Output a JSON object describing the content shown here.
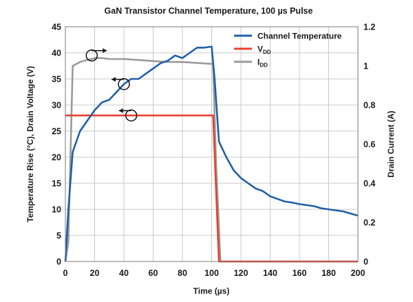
{
  "chart_data": {
    "type": "line",
    "title": "GaN Transistor Channel Temperature, 100 µs Pulse",
    "xlabel": "Time (µs)",
    "ylabel_left": "Temperature Rise (°C), Drain Voltage (V)",
    "ylabel_right": "Drain Current (A)",
    "xlim": [
      0,
      200
    ],
    "ylim_left": [
      0,
      45
    ],
    "ylim_right": [
      0,
      1.2
    ],
    "x_ticks": [
      "0",
      "20",
      "40",
      "60",
      "80",
      "100",
      "120",
      "140",
      "160",
      "180",
      "200"
    ],
    "y_left_ticks": [
      "0",
      "5",
      "10",
      "15",
      "20",
      "25",
      "30",
      "35",
      "40",
      "45"
    ],
    "y_right_ticks": [
      "0",
      "0.2",
      "0.4",
      "0.6",
      "0.8",
      "1",
      "1.2"
    ],
    "grid": true,
    "legend_position": "top-right",
    "series": [
      {
        "name": "Channel Temperature",
        "legend_main": "Channel Temperature",
        "legend_sub": "",
        "axis": "left",
        "color": "#1f5fa8",
        "x": [
          0,
          2,
          5,
          10,
          15,
          20,
          25,
          30,
          35,
          40,
          45,
          50,
          55,
          60,
          65,
          70,
          75,
          80,
          85,
          90,
          95,
          100,
          102,
          105,
          110,
          115,
          120,
          125,
          130,
          135,
          140,
          145,
          150,
          155,
          160,
          165,
          170,
          175,
          180,
          185,
          190,
          195,
          200
        ],
        "values": [
          0,
          10,
          21,
          25,
          27,
          29,
          30.5,
          31,
          32.5,
          34,
          35,
          35,
          36,
          37,
          38,
          38.5,
          39.5,
          39,
          40,
          41,
          41,
          41.2,
          35,
          23,
          20,
          17.5,
          16,
          15,
          14,
          13.5,
          12.5,
          12,
          11.5,
          11.3,
          11,
          10.8,
          10.6,
          10.2,
          10,
          9.8,
          9.6,
          9.2,
          8.8
        ]
      },
      {
        "name": "VDD",
        "legend_main": "V",
        "legend_sub": "DD",
        "axis": "left",
        "color": "#e8412c",
        "x": [
          0,
          101,
          105,
          200
        ],
        "values": [
          28,
          28,
          0,
          0
        ]
      },
      {
        "name": "IDD",
        "legend_main": "I",
        "legend_sub": "DD",
        "axis": "right",
        "color": "#9a9a9a",
        "x": [
          0,
          2,
          5,
          10,
          15,
          20,
          25,
          30,
          40,
          50,
          60,
          70,
          80,
          90,
          100,
          101,
          103,
          106,
          200
        ],
        "values": [
          0,
          0.1,
          1.0,
          1.02,
          1.03,
          1.04,
          1.04,
          1.035,
          1.035,
          1.03,
          1.025,
          1.02,
          1.02,
          1.015,
          1.01,
          1.01,
          0.5,
          0,
          0
        ]
      }
    ],
    "annotations": [
      {
        "name": "idd-axis-marker",
        "x": 18,
        "y": 39.5,
        "arrow": "right"
      },
      {
        "name": "temperature-axis-marker",
        "x": 40,
        "y": 34,
        "arrow": "left"
      },
      {
        "name": "vdd-axis-marker",
        "x": 45,
        "y": 28,
        "arrow": "left"
      }
    ]
  }
}
